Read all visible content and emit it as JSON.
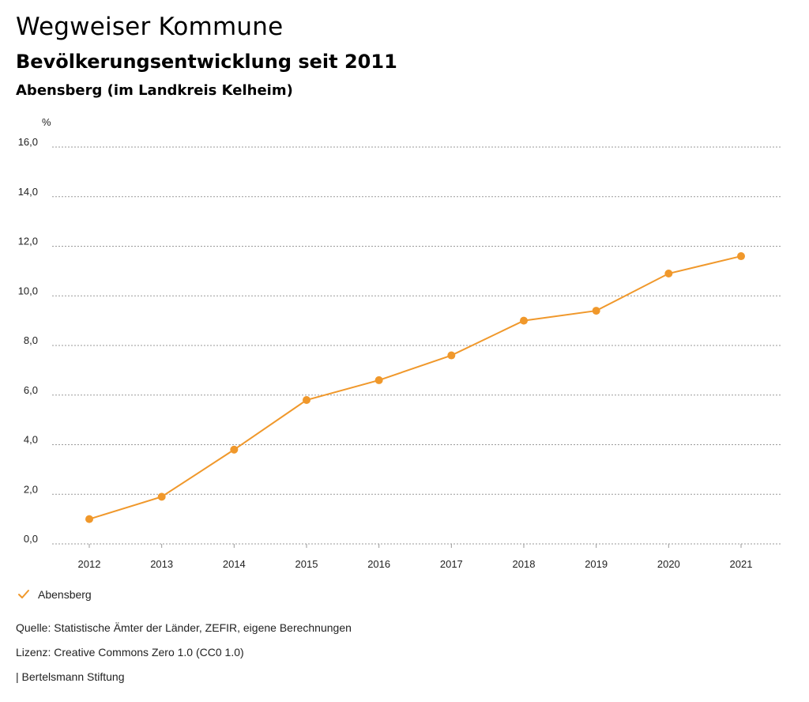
{
  "header": {
    "title": "Wegweiser Kommune",
    "subtitle": "Bevölkerungsentwicklung seit 2011",
    "region": "Abensberg (im Landkreis Kelheim)"
  },
  "chart_data": {
    "type": "line",
    "unit_label": "%",
    "x": [
      "2012",
      "2013",
      "2014",
      "2015",
      "2016",
      "2017",
      "2018",
      "2019",
      "2020",
      "2021"
    ],
    "series": [
      {
        "name": "Abensberg",
        "color": "#f0982b",
        "values": [
          1.0,
          1.9,
          3.8,
          5.8,
          6.6,
          7.6,
          9.0,
          9.4,
          10.9,
          11.6
        ]
      }
    ],
    "ylim": [
      0,
      16
    ],
    "yticks": [
      "0,0",
      "2,0",
      "4,0",
      "6,0",
      "8,0",
      "10,0",
      "12,0",
      "14,0",
      "16,0"
    ],
    "grid": true,
    "legend_position": "bottom-left"
  },
  "legend": {
    "items": [
      {
        "label": "Abensberg",
        "icon": "check-icon"
      }
    ]
  },
  "footer": {
    "source": "Quelle: Statistische Ämter der Länder, ZEFIR, eigene Berechnungen",
    "license": "Lizenz: Creative Commons Zero 1.0 (CC0 1.0)",
    "publisher": "| Bertelsmann Stiftung"
  }
}
